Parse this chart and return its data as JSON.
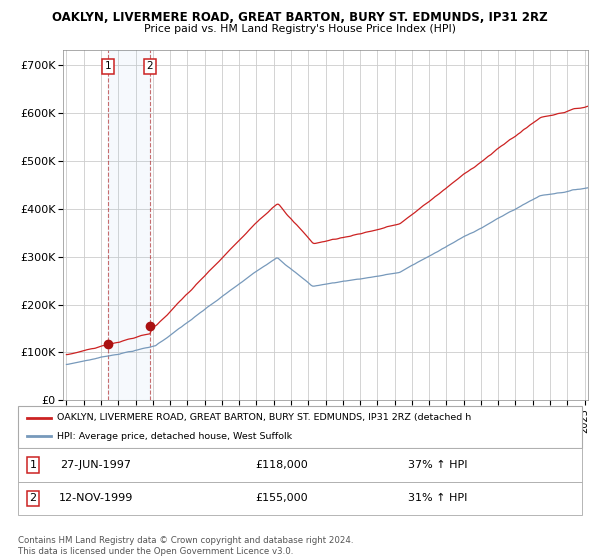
{
  "title1": "OAKLYN, LIVERMERE ROAD, GREAT BARTON, BURY ST. EDMUNDS, IP31 2RZ",
  "title2": "Price paid vs. HM Land Registry's House Price Index (HPI)",
  "legend_label1": "OAKLYN, LIVERMERE ROAD, GREAT BARTON, BURY ST. EDMUNDS, IP31 2RZ (detached h",
  "legend_label2": "HPI: Average price, detached house, West Suffolk",
  "sale1_date": "27-JUN-1997",
  "sale1_price": 118000,
  "sale1_label": "37% ↑ HPI",
  "sale2_date": "12-NOV-1999",
  "sale2_price": 155000,
  "sale2_label": "31% ↑ HPI",
  "footer": "Contains HM Land Registry data © Crown copyright and database right 2024.\nThis data is licensed under the Open Government Licence v3.0.",
  "bg_color": "#ffffff",
  "plot_bg_color": "#ffffff",
  "grid_color": "#cccccc",
  "line_color_hpi": "#7799bb",
  "line_color_price": "#cc2222",
  "marker_color": "#aa1111",
  "annotation_bg": "#ddeeff",
  "ylim": [
    0,
    730000
  ],
  "yticks": [
    0,
    100000,
    200000,
    300000,
    400000,
    500000,
    600000,
    700000
  ],
  "ytick_labels": [
    "£0",
    "£100K",
    "£200K",
    "£300K",
    "£400K",
    "£500K",
    "£600K",
    "£700K"
  ],
  "year_start": 1995,
  "year_end": 2025
}
